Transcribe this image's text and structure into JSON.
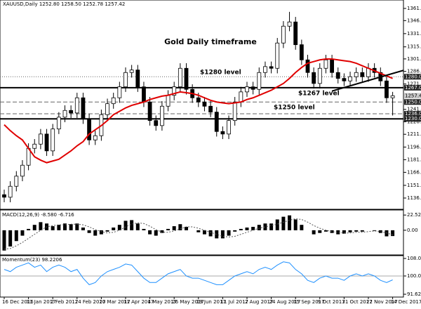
{
  "chart_data": {
    "type": "candlestick",
    "header": "XAUUSD,Daily  1252.80 1258.50 1252.78 1257.42",
    "title": "Gold Daily timeframe",
    "annotations": [
      "$1280 level",
      "$1267 level",
      "$1250 level"
    ],
    "categories": [
      "16 Dec 2016",
      null,
      null,
      null,
      "11 Jan 2017",
      null,
      null,
      null,
      "2 Feb 2017",
      null,
      null,
      null,
      "24 Feb 2017",
      null,
      null,
      null,
      "20 Mar 2017",
      null,
      null,
      null,
      "11 Apr 2017",
      null,
      null,
      null,
      "4 May 2017",
      null,
      null,
      null,
      "26 May 2017",
      null,
      null,
      null,
      "19 Jun 2017",
      null,
      null,
      null,
      "11 Jul 2017",
      null,
      null,
      null,
      "2 Aug 2017",
      null,
      null,
      null,
      "24 Aug 2017",
      null,
      null,
      null,
      "15 Sep 2017",
      null,
      null,
      null,
      "9 Oct 2017",
      null,
      null,
      null,
      "31 Oct 2017",
      null,
      null,
      null,
      "22 Nov 2017",
      null,
      null,
      null,
      "14 Dec 2017"
    ],
    "ohlc": [
      [
        1140,
        1146,
        1131,
        1137
      ],
      [
        1137,
        1156,
        1131,
        1150
      ],
      [
        1150,
        1168,
        1144,
        1162
      ],
      [
        1162,
        1181,
        1156,
        1175
      ],
      [
        1175,
        1201,
        1169,
        1195
      ],
      [
        1195,
        1206,
        1189,
        1200
      ],
      [
        1200,
        1218,
        1194,
        1212
      ],
      [
        1212,
        1218,
        1186,
        1192
      ],
      [
        1192,
        1224,
        1186,
        1218
      ],
      [
        1218,
        1238,
        1212,
        1232
      ],
      [
        1232,
        1246,
        1226,
        1240
      ],
      [
        1240,
        1246,
        1231,
        1237
      ],
      [
        1237,
        1261,
        1231,
        1255
      ],
      [
        1255,
        1261,
        1224,
        1230
      ],
      [
        1230,
        1236,
        1199,
        1205
      ],
      [
        1205,
        1216,
        1199,
        1210
      ],
      [
        1210,
        1241,
        1204,
        1235
      ],
      [
        1235,
        1254,
        1229,
        1248
      ],
      [
        1248,
        1261,
        1242,
        1255
      ],
      [
        1255,
        1274,
        1249,
        1268
      ],
      [
        1268,
        1291,
        1262,
        1285
      ],
      [
        1285,
        1294,
        1279,
        1288
      ],
      [
        1288,
        1294,
        1262,
        1268
      ],
      [
        1268,
        1274,
        1244,
        1250
      ],
      [
        1250,
        1256,
        1222,
        1228
      ],
      [
        1228,
        1234,
        1216,
        1222
      ],
      [
        1222,
        1251,
        1216,
        1245
      ],
      [
        1245,
        1264,
        1239,
        1258
      ],
      [
        1258,
        1274,
        1252,
        1268
      ],
      [
        1268,
        1296,
        1262,
        1290
      ],
      [
        1290,
        1296,
        1259,
        1265
      ],
      [
        1265,
        1271,
        1249,
        1255
      ],
      [
        1255,
        1261,
        1244,
        1250
      ],
      [
        1250,
        1256,
        1239,
        1245
      ],
      [
        1245,
        1251,
        1232,
        1238
      ],
      [
        1238,
        1244,
        1209,
        1215
      ],
      [
        1215,
        1221,
        1206,
        1212
      ],
      [
        1212,
        1234,
        1206,
        1228
      ],
      [
        1228,
        1256,
        1222,
        1250
      ],
      [
        1250,
        1268,
        1244,
        1262
      ],
      [
        1262,
        1274,
        1256,
        1268
      ],
      [
        1268,
        1274,
        1259,
        1265
      ],
      [
        1265,
        1291,
        1259,
        1285
      ],
      [
        1285,
        1298,
        1279,
        1292
      ],
      [
        1292,
        1298,
        1284,
        1290
      ],
      [
        1290,
        1326,
        1284,
        1320
      ],
      [
        1320,
        1346,
        1314,
        1340
      ],
      [
        1340,
        1357,
        1334,
        1345
      ],
      [
        1345,
        1351,
        1312,
        1318
      ],
      [
        1318,
        1324,
        1294,
        1300
      ],
      [
        1300,
        1306,
        1279,
        1285
      ],
      [
        1285,
        1291,
        1266,
        1272
      ],
      [
        1272,
        1296,
        1266,
        1290
      ],
      [
        1290,
        1306,
        1284,
        1300
      ],
      [
        1300,
        1306,
        1279,
        1285
      ],
      [
        1285,
        1291,
        1272,
        1278
      ],
      [
        1278,
        1284,
        1269,
        1275
      ],
      [
        1275,
        1286,
        1269,
        1280
      ],
      [
        1280,
        1291,
        1274,
        1285
      ],
      [
        1285,
        1291,
        1274,
        1280
      ],
      [
        1280,
        1296,
        1274,
        1290
      ],
      [
        1290,
        1296,
        1279,
        1285
      ],
      [
        1285,
        1291,
        1269,
        1275
      ],
      [
        1275,
        1281,
        1249,
        1255
      ],
      [
        1255,
        1262,
        1234,
        1257.42
      ]
    ],
    "ma": {
      "color": "#e00000",
      "values": [
        1223,
        1216,
        1210,
        1205,
        1195,
        1185,
        1181,
        1178,
        1180,
        1182,
        1187,
        1192,
        1198,
        1203,
        1212,
        1217,
        1222,
        1228,
        1235,
        1239,
        1243,
        1246,
        1248,
        1250,
        1253,
        1255,
        1257,
        1258,
        1260,
        1262,
        1261,
        1260,
        1258,
        1255,
        1252,
        1250,
        1249,
        1248,
        1249,
        1250,
        1253,
        1255,
        1258,
        1261,
        1264,
        1268,
        1272,
        1278,
        1285,
        1291,
        1296,
        1298,
        1300,
        1301,
        1301,
        1300,
        1299,
        1298,
        1296,
        1293,
        1290,
        1287,
        1284,
        1281,
        1278
      ]
    },
    "ylim": [
      1122.7,
      1371.05
    ],
    "yticks": [
      {
        "value": 1361.05,
        "label": "1361.05"
      },
      {
        "value": 1346.6,
        "label": "1346.60"
      },
      {
        "value": 1331.15,
        "label": "1331.15"
      },
      {
        "value": 1315.45,
        "label": "1315.45"
      },
      {
        "value": 1301.15,
        "label": "1301.15"
      },
      {
        "value": 1286.3,
        "label": "1286.30"
      },
      {
        "value": 1271.4,
        "label": "1271.40"
      },
      {
        "value": 1241.25,
        "label": "1241.25"
      },
      {
        "value": 1226.55,
        "label": "1226.55"
      },
      {
        "value": 1211.7,
        "label": "1211.70"
      },
      {
        "value": 1196.55,
        "label": "1196.55"
      },
      {
        "value": 1181.55,
        "label": "1181.55"
      },
      {
        "value": 1166.55,
        "label": "1166.55"
      },
      {
        "value": 1151.1,
        "label": "1151.10"
      },
      {
        "value": 1136.05,
        "label": "1136.05"
      }
    ],
    "levels": [
      {
        "value": 1280,
        "style": "dotted"
      },
      {
        "value": 1267,
        "style": "solid"
      },
      {
        "value": 1250,
        "style": "dashed"
      },
      {
        "value": 1236,
        "style": "dashed"
      },
      {
        "value": 1230,
        "style": "solid"
      }
    ],
    "price_marks": [
      {
        "value": 1280,
        "label": "1280.00"
      },
      {
        "value": 1267,
        "label": "1267.00"
      },
      {
        "value": 1257.42,
        "label": "1257.42"
      },
      {
        "value": 1250,
        "label": "1250.00"
      },
      {
        "value": 1236,
        "label": "1236.00"
      },
      {
        "value": 1230,
        "label": "1230.00"
      }
    ],
    "trendline": [
      [
        54,
        1263
      ],
      [
        66,
        1288
      ]
    ],
    "macd": {
      "label": "MACD(12,26,9) -8.580 -6.716",
      "ylim": [
        -36.5,
        30
      ],
      "yticks": [
        {
          "value": 22.528,
          "label": "22.528"
        },
        {
          "value": 0,
          "label": "0.00"
        }
      ],
      "histogram": [
        -30,
        -24,
        -16,
        -8,
        2,
        8,
        12,
        10,
        6,
        8,
        10,
        9,
        10,
        4,
        -4,
        -8,
        -6,
        -2,
        4,
        8,
        14,
        15,
        10,
        2,
        -6,
        -8,
        -4,
        2,
        6,
        9,
        5,
        0,
        -3,
        -6,
        -9,
        -12,
        -12,
        -8,
        -2,
        2,
        4,
        5,
        8,
        10,
        10,
        16,
        20,
        22,
        16,
        8,
        0,
        -6,
        -4,
        -2,
        -4,
        -6,
        -5,
        -3,
        -2,
        -2,
        0,
        -1,
        -4,
        -9,
        -8.58
      ],
      "signal": [
        -28,
        -27,
        -23,
        -18,
        -12,
        -6,
        0,
        5,
        7,
        8,
        8,
        9,
        9,
        8,
        5,
        1,
        -2,
        -4,
        -3,
        0,
        5,
        9,
        11,
        10,
        6,
        1,
        -3,
        -3,
        -1,
        2,
        5,
        5,
        3,
        0,
        -3,
        -6,
        -9,
        -10,
        -9,
        -6,
        -3,
        0,
        3,
        5,
        7,
        9,
        12,
        15,
        17,
        16,
        12,
        7,
        3,
        0,
        -2,
        -3,
        -4,
        -4,
        -3,
        -3,
        -2,
        -1,
        -2,
        -4,
        -6.716
      ]
    },
    "momentum": {
      "label": "Momentum(23) 98.2206",
      "color": "#1e90ff",
      "ylim": [
        90.33,
        109.33
      ],
      "yticks": [
        {
          "value": 108.03,
          "label": "108.03"
        },
        {
          "value": 100,
          "label": "100.00"
        },
        {
          "value": 91.62,
          "label": "91.62"
        }
      ],
      "values": [
        103,
        102,
        104,
        105,
        106,
        104,
        105,
        102,
        104,
        105,
        104,
        102,
        103,
        99,
        96,
        97,
        100,
        102,
        103,
        104,
        105.5,
        105,
        102,
        99,
        97,
        97,
        99,
        101,
        102,
        103,
        100,
        99,
        99,
        98,
        97,
        96,
        96,
        98,
        100,
        101,
        102,
        101,
        103,
        104,
        103,
        105,
        106.5,
        106,
        103,
        101,
        98,
        97,
        99,
        100,
        99,
        99,
        98,
        100,
        101,
        100,
        101,
        100,
        98,
        97,
        98.2206
      ]
    }
  }
}
